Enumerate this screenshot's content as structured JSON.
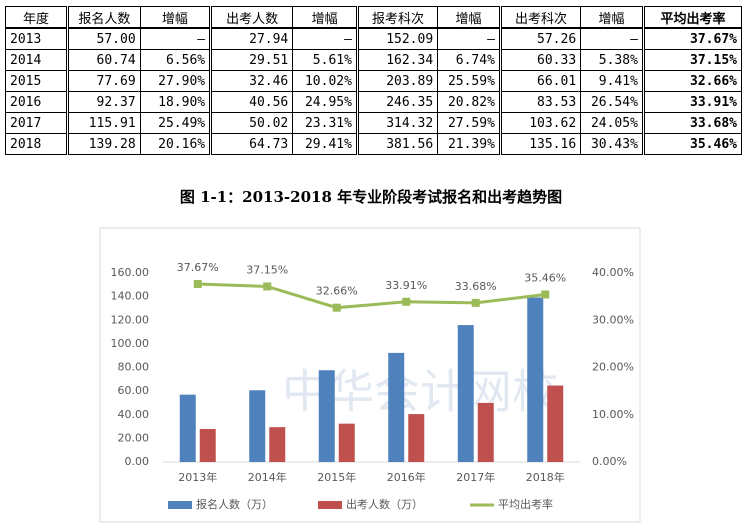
{
  "table": {
    "header": [
      "年度",
      "报名人数",
      "增幅",
      "出考人数",
      "增幅",
      "报考科次",
      "增幅",
      "出考科次",
      "增幅",
      "平均出考率"
    ],
    "rows": [
      [
        "2013",
        "57.00",
        "—",
        "27.94",
        "—",
        "152.09",
        "—",
        "57.26",
        "—",
        "37.67%"
      ],
      [
        "2014",
        "60.74",
        "6.56%",
        "29.51",
        "5.61%",
        "162.34",
        "6.74%",
        "60.33",
        "5.38%",
        "37.15%"
      ],
      [
        "2015",
        "77.69",
        "27.90%",
        "32.46",
        "10.02%",
        "203.89",
        "25.59%",
        "66.01",
        "9.41%",
        "32.66%"
      ],
      [
        "2016",
        "92.37",
        "18.90%",
        "40.56",
        "24.95%",
        "246.35",
        "20.82%",
        "83.53",
        "26.54%",
        "33.91%"
      ],
      [
        "2017",
        "115.91",
        "25.49%",
        "50.02",
        "23.31%",
        "314.32",
        "27.59%",
        "103.62",
        "24.05%",
        "33.68%"
      ],
      [
        "2018",
        "139.28",
        "20.16%",
        "64.73",
        "29.41%",
        "381.56",
        "21.39%",
        "135.16",
        "30.43%",
        "35.46%"
      ]
    ]
  },
  "caption": "图 1-1：2013-2018 年专业阶段考试报名和出考趋势图",
  "chart_data": {
    "type": "bar",
    "categories": [
      "2013年",
      "2014年",
      "2015年",
      "2016年",
      "2017年",
      "2018年"
    ],
    "series": [
      {
        "name": "报名人数（万）",
        "color": "#4f81bd",
        "values": [
          57.0,
          60.74,
          77.69,
          92.37,
          115.91,
          139.28
        ]
      },
      {
        "name": "出考人数（万）",
        "color": "#c0504d",
        "values": [
          27.94,
          29.51,
          32.46,
          40.56,
          50.02,
          64.73
        ]
      },
      {
        "name": "平均出考率",
        "color": "#9bbb59",
        "type": "line",
        "axis": "y2",
        "values": [
          37.67,
          37.15,
          32.66,
          33.91,
          33.68,
          35.46
        ],
        "value_labels": [
          "37.67%",
          "37.15%",
          "32.66%",
          "33.91%",
          "33.68%",
          "35.46%"
        ]
      }
    ],
    "ylim": [
      0,
      160
    ],
    "yticks": [
      {
        "value": 0,
        "label": "0.00"
      },
      {
        "value": 20,
        "label": "20.00"
      },
      {
        "value": 40,
        "label": "40.00"
      },
      {
        "value": 60,
        "label": "60.00"
      },
      {
        "value": 80,
        "label": "80.00"
      },
      {
        "value": 100,
        "label": "100.00"
      },
      {
        "value": 120,
        "label": "120.00"
      },
      {
        "value": 140,
        "label": "140.00"
      },
      {
        "value": 160,
        "label": "160.00"
      }
    ],
    "y2lim": [
      0,
      40
    ],
    "y2ticks": [
      {
        "value": 0,
        "label": "0.00%"
      },
      {
        "value": 10,
        "label": "10.00%"
      },
      {
        "value": 20,
        "label": "20.00%"
      },
      {
        "value": 30,
        "label": "30.00%"
      },
      {
        "value": 40,
        "label": "40.00%"
      }
    ],
    "watermark": "中华会计网校",
    "legend": "bottom"
  }
}
